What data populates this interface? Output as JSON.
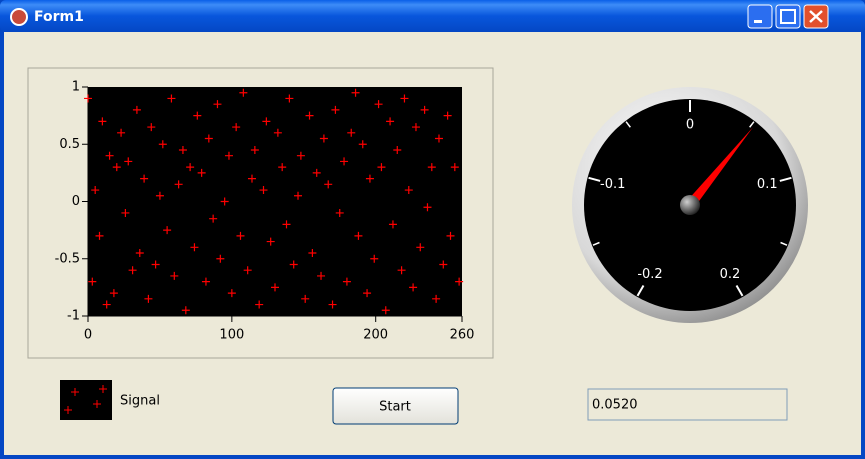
{
  "window": {
    "title": "Form1"
  },
  "chart_data": [
    {
      "type": "scatter",
      "x": [
        0,
        3,
        5,
        8,
        10,
        13,
        15,
        18,
        20,
        23,
        26,
        28,
        31,
        34,
        36,
        39,
        42,
        44,
        47,
        50,
        52,
        55,
        58,
        60,
        63,
        66,
        68,
        71,
        74,
        76,
        79,
        82,
        84,
        87,
        90,
        92,
        95,
        98,
        100,
        103,
        106,
        108,
        111,
        114,
        116,
        119,
        122,
        124,
        127,
        130,
        132,
        135,
        138,
        140,
        143,
        146,
        148,
        151,
        154,
        156,
        159,
        162,
        164,
        167,
        170,
        172,
        175,
        178,
        180,
        183,
        186,
        188,
        191,
        194,
        196,
        199,
        202,
        204,
        207,
        210,
        212,
        215,
        218,
        220,
        223,
        226,
        228,
        231,
        234,
        236,
        239,
        242,
        244,
        247,
        250,
        252,
        255,
        258
      ],
      "series": [
        {
          "name": "Signal",
          "color": "#ff0000",
          "values": [
            0.9,
            -0.7,
            0.1,
            -0.3,
            0.7,
            -0.9,
            0.4,
            -0.8,
            0.3,
            0.6,
            -0.1,
            0.35,
            -0.6,
            0.8,
            -0.45,
            0.2,
            -0.85,
            0.65,
            -0.55,
            0.05,
            0.5,
            -0.25,
            0.9,
            -0.65,
            0.15,
            0.45,
            -0.95,
            0.3,
            -0.4,
            0.75,
            0.25,
            -0.7,
            0.55,
            -0.15,
            0.85,
            -0.5,
            0.0,
            0.4,
            -0.8,
            0.65,
            -0.3,
            0.95,
            -0.6,
            0.2,
            0.45,
            -0.9,
            0.1,
            0.7,
            -0.35,
            -0.75,
            0.6,
            0.3,
            -0.2,
            0.9,
            -0.55,
            0.05,
            0.4,
            -0.85,
            0.75,
            -0.45,
            0.25,
            -0.65,
            0.55,
            0.15,
            -0.9,
            0.8,
            -0.1,
            0.35,
            -0.7,
            0.6,
            0.95,
            -0.3,
            0.5,
            -0.8,
            0.2,
            -0.5,
            0.85,
            0.3,
            -0.95,
            0.7,
            -0.2,
            0.45,
            -0.6,
            0.9,
            0.1,
            -0.75,
            0.65,
            -0.4,
            0.8,
            -0.05,
            0.3,
            -0.85,
            0.55,
            -0.55,
            0.75,
            -0.3,
            0.3,
            -0.7
          ]
        }
      ],
      "xlim": [
        0,
        260
      ],
      "xticks": [
        0,
        100,
        200,
        260
      ],
      "ylim": [
        -1,
        1
      ],
      "yticks": [
        -1,
        -0.5,
        0,
        0.5,
        1
      ]
    },
    {
      "type": "gauge",
      "value": 0.052,
      "color": "#ff0000",
      "lim": [
        -0.24,
        0.24
      ],
      "ticks": [
        -0.2,
        -0.1,
        0,
        0.1,
        0.2
      ],
      "minor_ticks": [
        -0.15,
        -0.05,
        0.05,
        0.15
      ]
    }
  ],
  "controls": {
    "button": "Start",
    "textbox": "0.0520"
  }
}
